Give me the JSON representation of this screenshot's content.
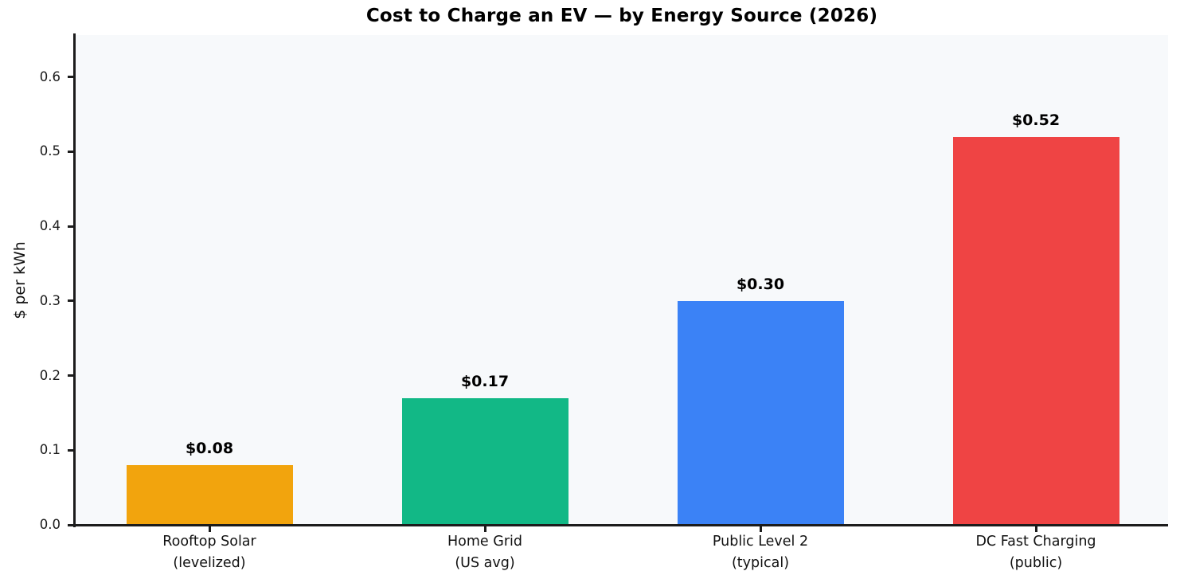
{
  "chart_data": {
    "type": "bar",
    "title": "Cost to Charge an EV — by Energy Source (2026)",
    "xlabel": "",
    "ylabel": "$ per kWh",
    "categories": [
      "Rooftop Solar (levelized)",
      "Home Grid (US avg)",
      "Public Level 2 (typical)",
      "DC Fast Charging (public)"
    ],
    "category_lines": [
      [
        "Rooftop Solar",
        "(levelized)"
      ],
      [
        "Home Grid",
        "(US avg)"
      ],
      [
        "Public Level 2",
        "(typical)"
      ],
      [
        "DC Fast Charging",
        "(public)"
      ]
    ],
    "values": [
      0.08,
      0.17,
      0.3,
      0.52
    ],
    "bar_labels": [
      "$0.08",
      "$0.17",
      "$0.30",
      "$0.52"
    ],
    "bar_colors": [
      "#F2A40D",
      "#12B886",
      "#3B82F6",
      "#EF4444"
    ],
    "yticks": [
      0.0,
      0.1,
      0.2,
      0.3,
      0.4,
      0.5,
      0.6
    ],
    "ytick_labels": [
      "0.0",
      "0.1",
      "0.2",
      "0.3",
      "0.4",
      "0.5",
      "0.6"
    ],
    "ylim": [
      0,
      0.656
    ],
    "grid": false,
    "legend_position": "none",
    "plot_background": "#F7F9FB",
    "figure_background": "#FFFFFF",
    "axis_color": "#1C1C1C"
  }
}
